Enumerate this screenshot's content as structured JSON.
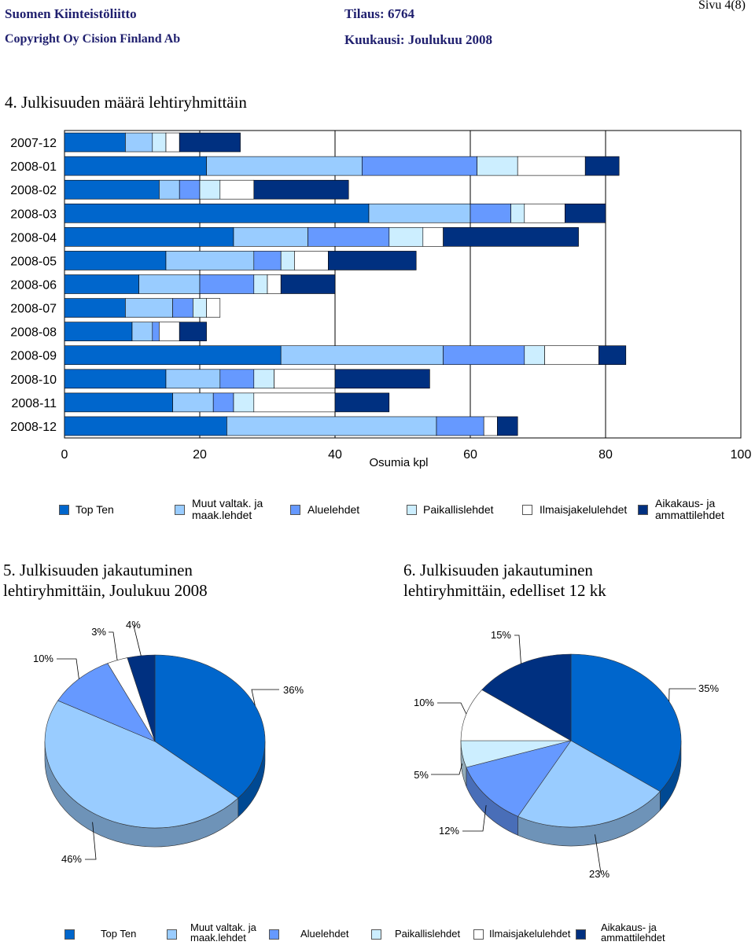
{
  "header": {
    "org": "Suomen Kiinteistöliitto",
    "copyright": "Copyright Oy Cision Finland Ab",
    "order": "Tilaus: 6764",
    "month": "Kuukausi: Joulukuu 2008",
    "page": "Sivu 4(8)"
  },
  "section4": {
    "title": "4. Julkisuuden määrä lehtiryhmittäin"
  },
  "section5": {
    "title_line1": "5. Julkisuuden jakautuminen",
    "title_line2": "lehtiryhmittäin, Joulukuu 2008"
  },
  "section6": {
    "title_line1": "6. Julkisuuden jakautuminen",
    "title_line2": "lehtiryhmittäin, edelliset 12 kk"
  },
  "colors": {
    "top_ten": "#0066cc",
    "muut": "#99ccff",
    "alue": "#6699ff",
    "paikallis": "#cceeff",
    "ilmais": "#ffffff",
    "aikakaus": "#003080"
  },
  "legend": [
    {
      "label1": "Top Ten",
      "label2": "",
      "color_key": "top_ten"
    },
    {
      "label1": "Muut valtak. ja",
      "label2": "maak.lehdet",
      "color_key": "muut"
    },
    {
      "label1": "Aluelehdet",
      "label2": "",
      "color_key": "alue"
    },
    {
      "label1": "Paikallislehdet",
      "label2": "",
      "color_key": "paikallis"
    },
    {
      "label1": "Ilmaisjakelulehdet",
      "label2": "",
      "color_key": "ilmais"
    },
    {
      "label1": "Aikakaus- ja",
      "label2": "ammattilehdet",
      "color_key": "aikakaus"
    }
  ],
  "chart_data": [
    {
      "type": "bar",
      "orientation": "horizontal",
      "stacked": true,
      "title": "4. Julkisuuden määrä lehtiryhmittäin",
      "xlabel": "Osumia kpl",
      "xlim": [
        0,
        100
      ],
      "xticks": [
        0,
        20,
        40,
        60,
        80,
        100
      ],
      "categories": [
        "2007-12",
        "2008-01",
        "2008-02",
        "2008-03",
        "2008-04",
        "2008-05",
        "2008-06",
        "2008-07",
        "2008-08",
        "2008-09",
        "2008-10",
        "2008-11",
        "2008-12"
      ],
      "series": [
        {
          "name": "Top Ten",
          "values": [
            9,
            21,
            14,
            45,
            25,
            15,
            11,
            9,
            10,
            32,
            15,
            16,
            24
          ]
        },
        {
          "name": "Muut valtak. ja maak.lehdet",
          "values": [
            4,
            23,
            3,
            15,
            11,
            13,
            9,
            7,
            3,
            24,
            8,
            6,
            31
          ]
        },
        {
          "name": "Aluelehdet",
          "values": [
            0,
            17,
            3,
            6,
            12,
            4,
            8,
            3,
            1,
            12,
            5,
            3,
            7
          ]
        },
        {
          "name": "Paikallislehdet",
          "values": [
            2,
            6,
            3,
            2,
            5,
            2,
            2,
            2,
            0,
            3,
            3,
            3,
            0
          ]
        },
        {
          "name": "Ilmaisjakelulehdet",
          "values": [
            2,
            10,
            5,
            6,
            3,
            5,
            2,
            2,
            3,
            8,
            9,
            12,
            2
          ]
        },
        {
          "name": "Aikakaus- ja ammattilehdet",
          "values": [
            9,
            5,
            14,
            6,
            20,
            13,
            8,
            0,
            4,
            4,
            14,
            8,
            3
          ]
        }
      ]
    },
    {
      "type": "pie",
      "title": "5. Julkisuuden jakautuminen lehtiryhmittäin, Joulukuu 2008",
      "slices": [
        {
          "name": "Top Ten",
          "label": "36%",
          "value": 36
        },
        {
          "name": "Muut valtak. ja maak.lehdet",
          "label": "46%",
          "value": 46
        },
        {
          "name": "Aluelehdet",
          "label": "10%",
          "value": 10
        },
        {
          "name": "Ilmaisjakelulehdet",
          "label": "3%",
          "value": 3
        },
        {
          "name": "Aikakaus- ja ammattilehdet",
          "label": "4%",
          "value": 4
        }
      ]
    },
    {
      "type": "pie",
      "title": "6. Julkisuuden jakautuminen lehtiryhmittäin, edelliset 12 kk",
      "slices": [
        {
          "name": "Top Ten",
          "label": "35%",
          "value": 35
        },
        {
          "name": "Muut valtak. ja maak.lehdet",
          "label": "23%",
          "value": 23
        },
        {
          "name": "Aluelehdet",
          "label": "12%",
          "value": 12
        },
        {
          "name": "Paikallislehdet",
          "label": "5%",
          "value": 5
        },
        {
          "name": "Ilmaisjakelulehdet",
          "label": "10%",
          "value": 10
        },
        {
          "name": "Aikakaus- ja ammattilehdet",
          "label": "15%",
          "value": 15
        }
      ]
    }
  ]
}
